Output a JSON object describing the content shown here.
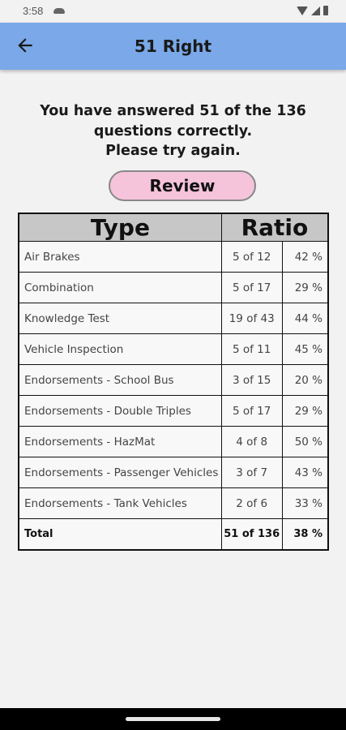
{
  "status_bar": {
    "time": "3:58"
  },
  "app_bar": {
    "title": "51 Right"
  },
  "message": {
    "line1": "You have answered 51 of the 136",
    "line2": "questions correctly.",
    "line3": "Please try again."
  },
  "review_button": {
    "label": "Review"
  },
  "table": {
    "headers": {
      "type": "Type",
      "ratio": "Ratio"
    },
    "rows": [
      {
        "type": "Air Brakes",
        "ratio": "5 of 12",
        "percent": "42 %"
      },
      {
        "type": "Combination",
        "ratio": "5 of 17",
        "percent": "29 %"
      },
      {
        "type": "Knowledge Test",
        "ratio": "19 of 43",
        "percent": "44 %"
      },
      {
        "type": "Vehicle Inspection",
        "ratio": "5 of 11",
        "percent": "45 %"
      },
      {
        "type": "Endorsements - School Bus",
        "ratio": "3 of 15",
        "percent": "20 %"
      },
      {
        "type": "Endorsements - Double Triples",
        "ratio": "5 of 17",
        "percent": "29 %"
      },
      {
        "type": "Endorsements - HazMat",
        "ratio": "4 of 8",
        "percent": "50 %"
      },
      {
        "type": "Endorsements - Passenger Vehicles",
        "ratio": "3 of 7",
        "percent": "43 %"
      },
      {
        "type": "Endorsements - Tank Vehicles",
        "ratio": "2 of 6",
        "percent": "33 %"
      }
    ],
    "total": {
      "type": "Total",
      "ratio": "51 of 136",
      "percent": "38 %"
    }
  },
  "colors": {
    "app_bar": "#7aa8e8",
    "review_button": "#f5c3da",
    "header_row": "#c7c7c7",
    "background": "#f2f2f2"
  }
}
